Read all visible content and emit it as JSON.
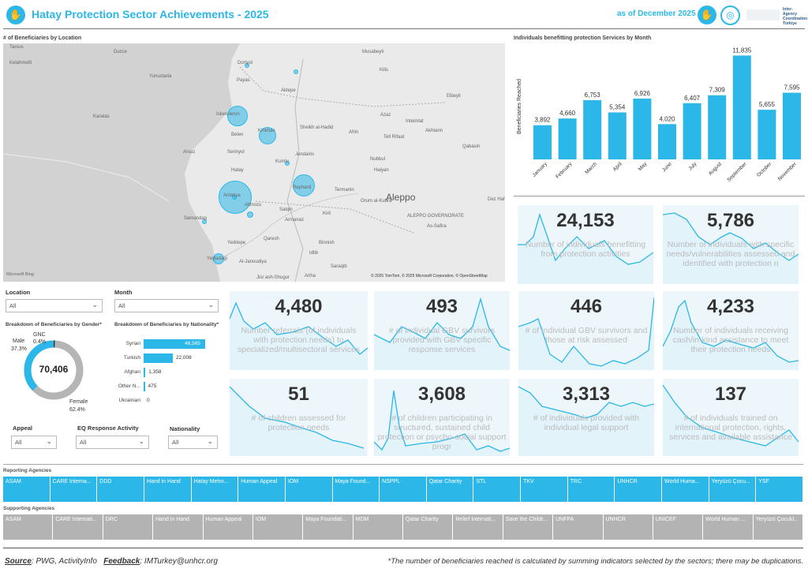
{
  "header": {
    "title": "Hatay Protection Sector Achievements - 2025",
    "as_of": "as of December 2025",
    "logo_text": "Inter-Agency Coordination Türkiye"
  },
  "map": {
    "title": "# of Beneficiaries by Location",
    "copyright": "© 2025 TomTom, © 2025 Microsoft Corporation, © OpenStreetMap",
    "brand": "Microsoft Bing",
    "labels": [
      "Tarsus",
      "Kelahmetli",
      "Duzce",
      "Yunustarla",
      "Karatas",
      "Dortyol",
      "Payas",
      "Musabeyli",
      "Kilis",
      "Elbeyli",
      "Aktepe",
      "Iskenderun",
      "Kirikhan",
      "Belen",
      "Serinyol",
      "Arsuz",
      "Hatay",
      "Kumlu",
      "Jendairis",
      "Sheikh al-Hadid",
      "Afrin",
      "Azaz",
      "Inteimlat",
      "Akhtarin",
      "Tell Rifaat",
      "Qabasin",
      "Nubbul",
      "Haiyan",
      "Antakya",
      "Reyhanli",
      "Termanin",
      "Aleppo",
      "Samandag",
      "Altinozu",
      "Salqin",
      "Armanaz",
      "Kirli",
      "Orum al-Kubra",
      "ALEPPO GOVERNORATE",
      "As-Safira",
      "Dez Hafir",
      "Qaresh",
      "Yeditepe",
      "Yayladagi",
      "Binnish",
      "Al-Janoudiya",
      "Idlib",
      "Saraqib",
      "Ariha",
      "Jisr ash-Shugur"
    ]
  },
  "filters": {
    "location_label": "Location",
    "location_value": "All",
    "month_label": "Month",
    "month_value": "All",
    "appeal_label": "Appeal",
    "appeal_value": "All",
    "eq_label": "EQ Response Activity",
    "eq_value": "All",
    "nationality_label": "Nationality",
    "nationality_value": "All"
  },
  "gender": {
    "title": "Breakdown of Beneficiaries by Gender*",
    "total": "70,406",
    "male_label": "Male",
    "male_pct": "37.3%",
    "gnc_label": "GNC",
    "gnc_pct": "0.4%",
    "female_label": "Female",
    "female_pct": "62.4%",
    "male_share": 0.373,
    "gnc_share": 0.004,
    "female_share": 0.624
  },
  "nationality": {
    "title": "Breakdown of Beneficiaries by Nationality*",
    "items": [
      {
        "label": "Syrian",
        "value": 46565,
        "display": "46,565"
      },
      {
        "label": "Turkish",
        "value": 22008,
        "display": "22,008"
      },
      {
        "label": "Afghan",
        "value": 1358,
        "display": "1,358"
      },
      {
        "label": "Other N...",
        "value": 475,
        "display": "475"
      },
      {
        "label": "Ukrainian",
        "value": 0,
        "display": "0"
      }
    ]
  },
  "chart_data": {
    "type": "bar",
    "title": "Individuals benefitting protection Services by Month",
    "ylabel": "Beneficiaries Reached",
    "categories": [
      "January",
      "February",
      "March",
      "April",
      "May",
      "June",
      "July",
      "August",
      "September",
      "October",
      "November"
    ],
    "values": [
      3892,
      4660,
      6753,
      5354,
      6926,
      4020,
      6407,
      7309,
      11835,
      5655,
      7595
    ],
    "labels": [
      "3,892",
      "4,660",
      "6,753",
      "5,354",
      "6,926",
      "4,020",
      "6,407",
      "7,309",
      "11,835",
      "5,655",
      "7,595"
    ]
  },
  "kpis": [
    {
      "num": "24,153",
      "desc": "Number of individuals benefitting from protection activities"
    },
    {
      "num": "5,786",
      "desc": "Number of individuals with specific needs/vulnerabilities assessed and identified with protection n"
    },
    {
      "num": "4,480",
      "desc": "Number referrals (of individuals with protection needs) to specialized/multisectoral services"
    },
    {
      "num": "493",
      "desc": "# of individual GBV survivors provided with GBV specific response services"
    },
    {
      "num": "446",
      "desc": "# of individual GBV survivors and those at risk assessed"
    },
    {
      "num": "4,233",
      "desc": "Number of individuals receiving cash/in-kind assistance to meet their protection needs"
    },
    {
      "num": "51",
      "desc": "# of children assessed for protection needs"
    },
    {
      "num": "3,608",
      "desc": "# of children participating in structured, sustained child protection or psycho-social support progr"
    },
    {
      "num": "3,313",
      "desc": "# of individuals provided with individual legal support"
    },
    {
      "num": "137",
      "desc": "# of individuals trained on international protection, rights, services and available assistance"
    }
  ],
  "reporting": {
    "title": "Reporting Agencies",
    "items": [
      "ASAM",
      "CARE Interna...",
      "DDD",
      "Hand in Hand",
      "Hatay Metro...",
      "Human Appeal",
      "IOM",
      "Maya Found...",
      "NSPPL",
      "Qatar Charity",
      "STL",
      "TKV",
      "TRC",
      "UNHCR",
      "World Huma...",
      "Yeryüzü Çocu...",
      "YSF"
    ]
  },
  "supporting": {
    "title": "Supporting Agencies",
    "items": [
      "ASAM",
      "CARE Internati...",
      "DRC",
      "Hand in Hand",
      "Human Appeal",
      "IOM",
      "Maya Foundati...",
      "MDM",
      "Qatar Charity",
      "Relief Internati...",
      "Save the Childr...",
      "UNFPA",
      "UNHCR",
      "UNICEF",
      "World Human ...",
      "Yeryüzü Çocukl..."
    ]
  },
  "footer": {
    "source_label": "Source",
    "source_text": ": PWG, ActivityInfo",
    "feedback_label": "Feedback",
    "feedback_text": ": IMTurkey@unhcr.org",
    "note": "*The number of beneficiaries reached is calculated by summing indicators selected by the sectors; there may be duplications."
  }
}
